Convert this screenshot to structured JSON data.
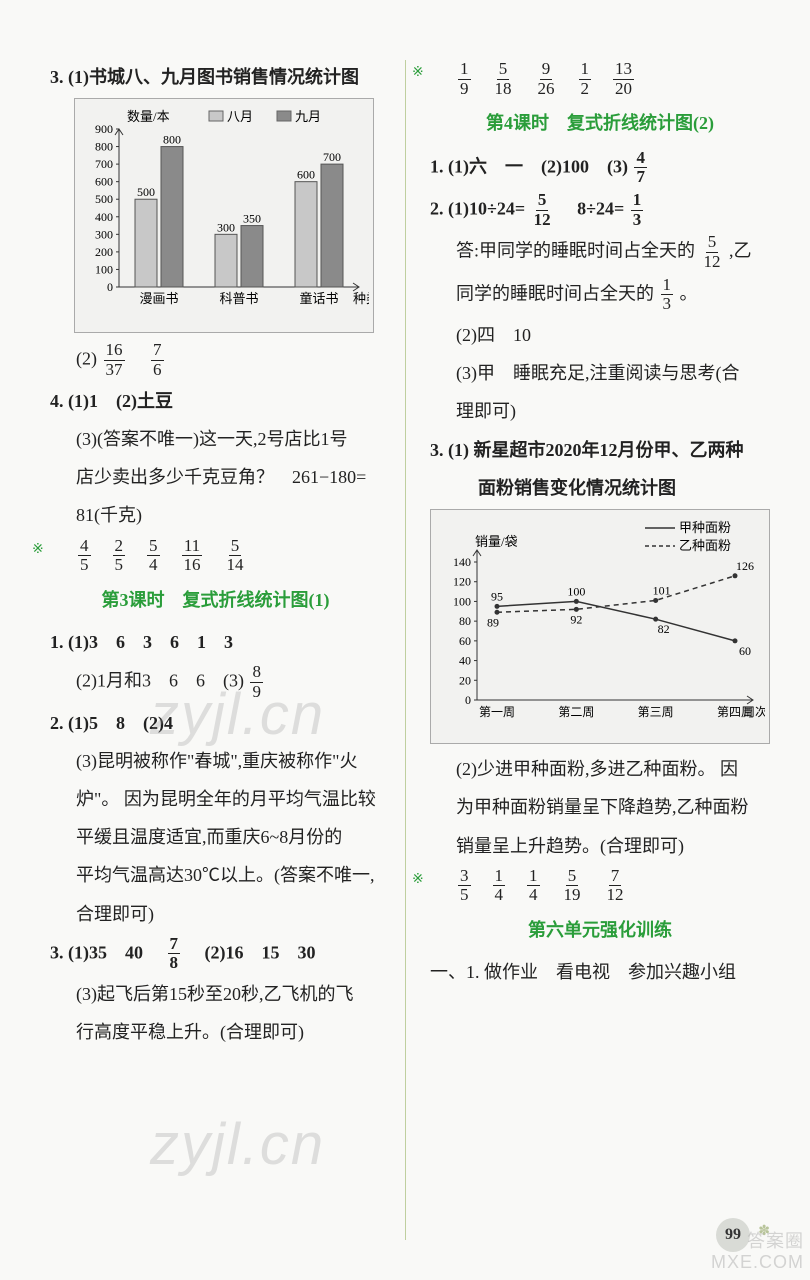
{
  "left": {
    "q3_title": "3. (1)书城八、九月图书销售情况统计图",
    "barChart": {
      "ylabel": "数量/本",
      "legend": [
        "八月",
        "九月"
      ],
      "legendColors": [
        "#c8c8c8",
        "#8a8a8a"
      ],
      "yTicks": [
        0,
        100,
        200,
        300,
        400,
        500,
        600,
        700,
        800,
        900
      ],
      "categories": [
        "漫画书",
        "科普书",
        "童话书"
      ],
      "xlabel": "种类",
      "series": [
        {
          "name": "八月",
          "color": "#c8c8c8",
          "values": [
            500,
            300,
            600
          ]
        },
        {
          "name": "九月",
          "color": "#8a8a8a",
          "values": [
            800,
            350,
            700
          ]
        }
      ],
      "labels": [
        [
          "500",
          "800"
        ],
        [
          "300",
          "350"
        ],
        [
          "600",
          "700"
        ]
      ]
    },
    "q3_2_prefix": "(2)",
    "q3_2_f1": {
      "n": "16",
      "d": "37"
    },
    "q3_2_f2": {
      "n": "7",
      "d": "6"
    },
    "q4_1": "4. (1)1　(2)土豆",
    "q4_3a": "(3)(答案不唯一)这一天,2号店比1号",
    "q4_3b": "店少卖出多少千克豆角？　261−180=",
    "q4_3c": "81(千克)",
    "star_fracs_1": [
      {
        "n": "4",
        "d": "5"
      },
      {
        "n": "2",
        "d": "5"
      },
      {
        "n": "5",
        "d": "4"
      },
      {
        "n": "11",
        "d": "16"
      },
      {
        "n": "5",
        "d": "14"
      }
    ],
    "section3_title": "第3课时　复式折线统计图(1)",
    "s3_1a": "1. (1)3　6　3　6　1　3",
    "s3_1b_prefix": "(2)1月和3　6　6　(3)",
    "s3_1b_frac": {
      "n": "8",
      "d": "9"
    },
    "s3_2a": "2. (1)5　8　(2)4",
    "s3_2b": "(3)昆明被称作\"春城\",重庆被称作\"火",
    "s3_2c": "炉\"。 因为昆明全年的月平均气温比较",
    "s3_2d": "平缓且温度适宜,而重庆6~8月份的",
    "s3_2e": "平均气温高达30℃以上。(答案不唯一,",
    "s3_2f": "合理即可)",
    "s3_3a_prefix": "3. (1)35　40　",
    "s3_3a_frac": {
      "n": "7",
      "d": "8"
    },
    "s3_3a_suffix": "　(2)16　15　30",
    "s3_3b": "(3)起飞后第15秒至20秒,乙飞机的飞",
    "s3_3c": "行高度平稳上升。(合理即可)"
  },
  "right": {
    "star_fracs_top": [
      {
        "n": "1",
        "d": "9"
      },
      {
        "n": "5",
        "d": "18"
      },
      {
        "n": "9",
        "d": "26"
      },
      {
        "n": "1",
        "d": "2"
      },
      {
        "n": "13",
        "d": "20"
      }
    ],
    "section4_title": "第4课时　复式折线统计图(2)",
    "s4_1_prefix": "1. (1)六　一　(2)100　(3)",
    "s4_1_frac": {
      "n": "4",
      "d": "7"
    },
    "s4_2a_prefix": "2. (1)10÷24=",
    "s4_2a_f1": {
      "n": "5",
      "d": "12"
    },
    "s4_2a_mid": "　8÷24=",
    "s4_2a_f2": {
      "n": "1",
      "d": "3"
    },
    "s4_2b_prefix": "答:甲同学的睡眠时间占全天的",
    "s4_2b_frac": {
      "n": "5",
      "d": "12"
    },
    "s4_2b_suffix": ",乙",
    "s4_2c_prefix": "同学的睡眠时间占全天的",
    "s4_2c_frac": {
      "n": "1",
      "d": "3"
    },
    "s4_2c_suffix": "。",
    "s4_2d": "(2)四　10",
    "s4_2e": "(3)甲　睡眠充足,注重阅读与思考(合",
    "s4_2f": "理即可)",
    "s4_3a": "3. (1) 新星超市2020年12月份甲、乙两种",
    "s4_3b": "面粉销售变化情况统计图",
    "lineChart": {
      "ylabel": "销量/袋",
      "legend": [
        "甲种面粉",
        "乙种面粉"
      ],
      "yTicks": [
        0,
        20,
        40,
        60,
        80,
        100,
        120,
        140
      ],
      "xTicks": [
        "第一周",
        "第二周",
        "第三周",
        "第四周"
      ],
      "xlabel": "周次",
      "series1": {
        "name": "甲种面粉",
        "style": "solid",
        "color": "#333",
        "values": [
          95,
          100,
          82,
          60
        ],
        "labels": [
          "95",
          "100",
          "82",
          "60"
        ]
      },
      "series2": {
        "name": "乙种面粉",
        "style": "dashed",
        "color": "#333",
        "values": [
          89,
          92,
          101,
          126
        ],
        "labels": [
          "89",
          "92",
          "101",
          "126"
        ]
      }
    },
    "s4_3c": "(2)少进甲种面粉,多进乙种面粉。 因",
    "s4_3d": "为甲种面粉销量呈下降趋势,乙种面粉",
    "s4_3e": "销量呈上升趋势。(合理即可)",
    "star_fracs_bottom": [
      {
        "n": "3",
        "d": "5"
      },
      {
        "n": "1",
        "d": "4"
      },
      {
        "n": "1",
        "d": "4"
      },
      {
        "n": "5",
        "d": "19"
      },
      {
        "n": "7",
        "d": "12"
      }
    ],
    "unit6_title": "第六单元强化训练",
    "u6_1": "一、1. 做作业　看电视　参加兴趣小组"
  },
  "pageNum": "99",
  "watermark": "zyjl.cn",
  "cornerWm1": "答案圈",
  "cornerWm2": "MXE.COM"
}
